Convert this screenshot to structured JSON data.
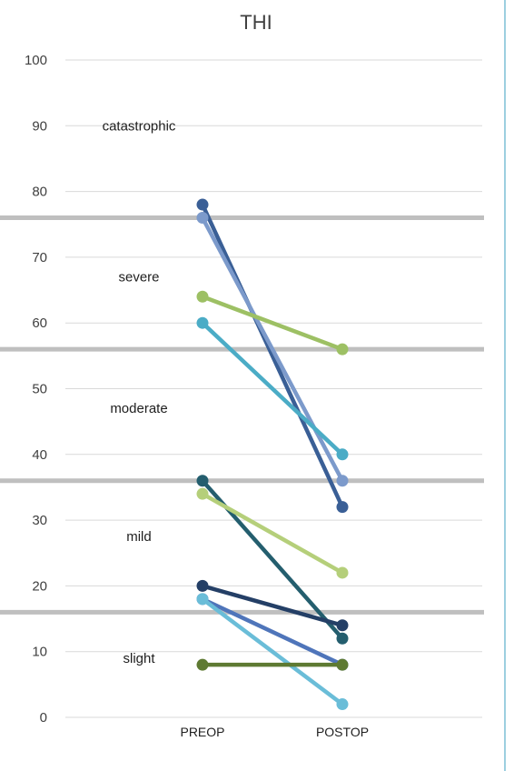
{
  "chart_data": {
    "type": "line",
    "title": "THI",
    "xlabel": "",
    "ylabel": "",
    "categories": [
      "PREOP",
      "POSTOP"
    ],
    "ylim": [
      0,
      100
    ],
    "yticks": [
      "0",
      "10",
      "20",
      "30",
      "40",
      "50",
      "60",
      "70",
      "80",
      "90",
      "100"
    ],
    "grid": true,
    "severity_thresholds": [
      16,
      36,
      56,
      76
    ],
    "severity_labels": [
      {
        "text": "catastrophic",
        "y": 90
      },
      {
        "text": "severe",
        "y": 67
      },
      {
        "text": "moderate",
        "y": 47
      },
      {
        "text": "mild",
        "y": 27.5
      },
      {
        "text": "slight",
        "y": 9
      }
    ],
    "series": [
      {
        "values": [
          78,
          32
        ],
        "color": "#3A5F96"
      },
      {
        "values": [
          76,
          36
        ],
        "color": "#7C9ACB"
      },
      {
        "values": [
          64,
          56
        ],
        "color": "#9DC064"
      },
      {
        "values": [
          60,
          40
        ],
        "color": "#4BACC6"
      },
      {
        "values": [
          36,
          12
        ],
        "color": "#245E6E"
      },
      {
        "values": [
          34,
          22
        ],
        "color": "#B5CF7A"
      },
      {
        "values": [
          20,
          14
        ],
        "color": "#243F66"
      },
      {
        "values": [
          18,
          8
        ],
        "color": "#4F75BA"
      },
      {
        "values": [
          18,
          2
        ],
        "color": "#6ABDD8"
      },
      {
        "values": [
          8,
          8
        ],
        "color": "#5E7A32"
      }
    ],
    "colors": {
      "gridline": "#D9D9D9",
      "threshold": "#BFBFBF",
      "frame": "#9CCFE0"
    }
  }
}
